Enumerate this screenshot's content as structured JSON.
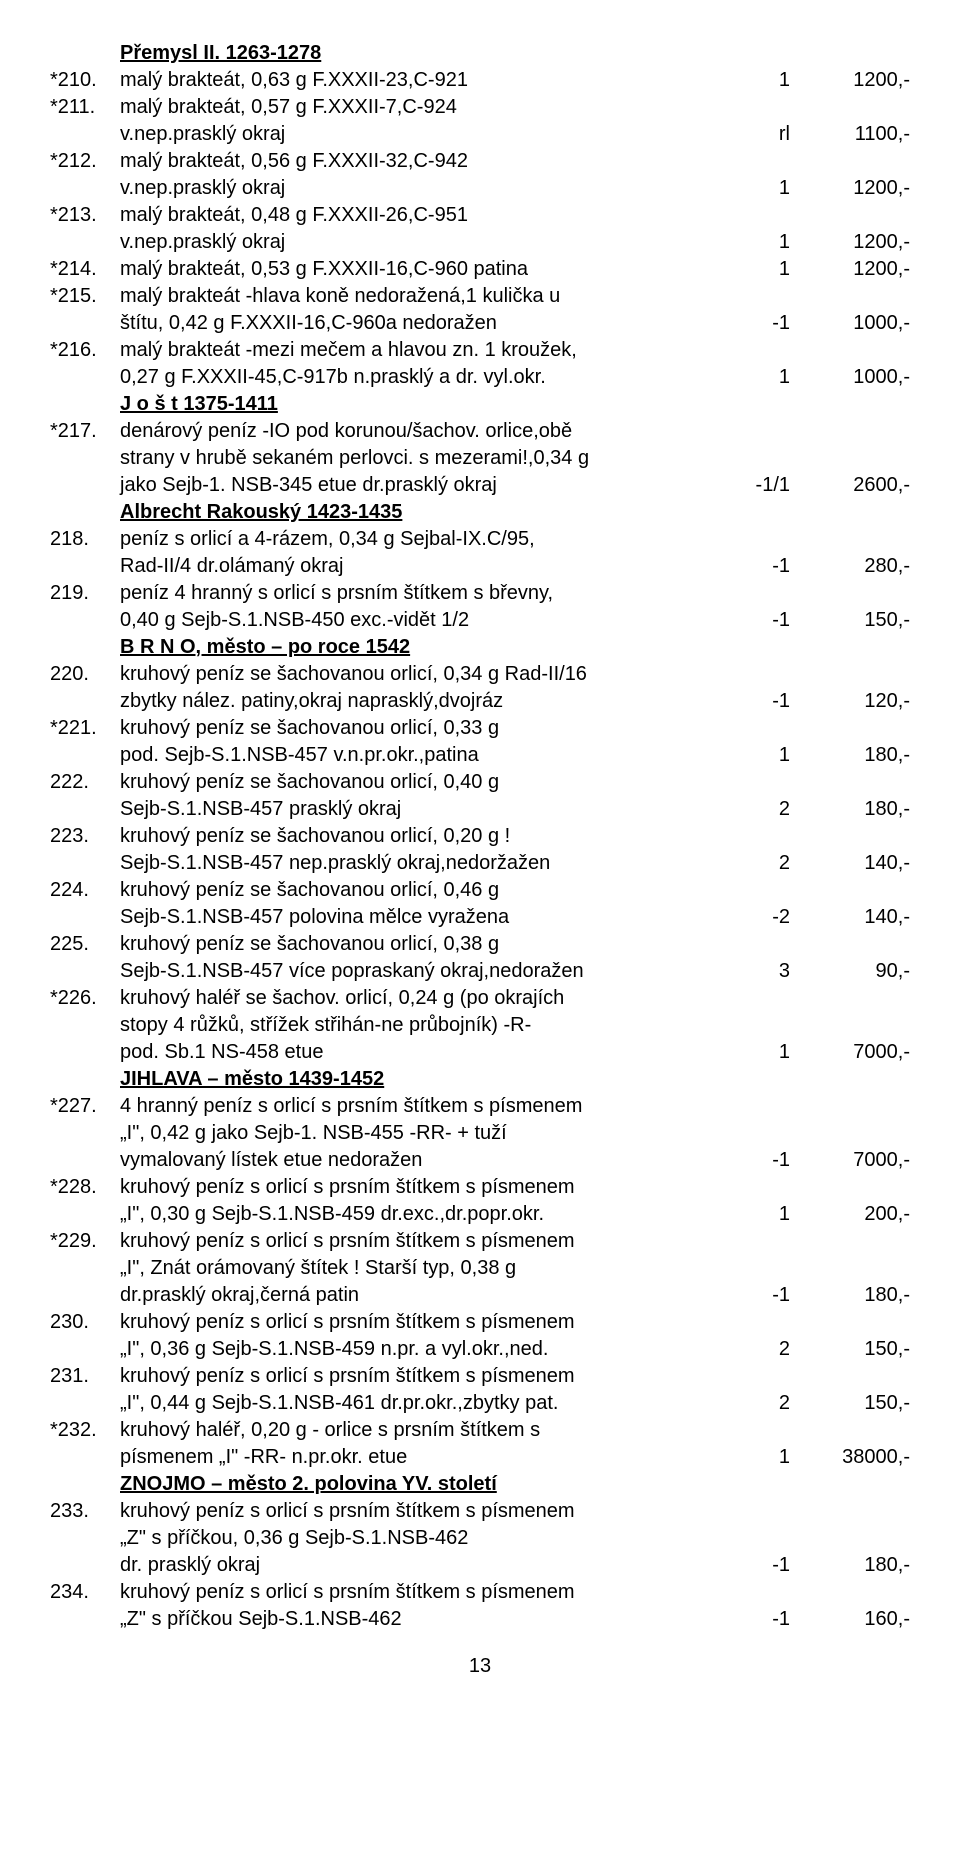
{
  "sections": [
    {
      "type": "heading",
      "text": "Přemysl II.  1263-1278"
    },
    {
      "type": "row",
      "lot": "*210.",
      "desc": "malý brakteát, 0,63 g   F.XXXII-23,C-921",
      "qty": "1",
      "price": "1200,-"
    },
    {
      "type": "row",
      "lot": "*211.",
      "desc": "malý brakteát, 0,57 g   F.XXXII-7,C-924",
      "qty": "",
      "price": ""
    },
    {
      "type": "row",
      "lot": "",
      "desc": "v.nep.prasklý okraj",
      "qty": "rl",
      "price": "1100,-"
    },
    {
      "type": "row",
      "lot": "*212.",
      "desc": "malý brakteát, 0,56 g   F.XXXII-32,C-942",
      "qty": "",
      "price": ""
    },
    {
      "type": "row",
      "lot": "",
      "desc": "v.nep.prasklý okraj",
      "qty": "1",
      "price": "1200,-"
    },
    {
      "type": "row",
      "lot": "*213.",
      "desc": "malý brakteát, 0,48 g   F.XXXII-26,C-951",
      "qty": "",
      "price": ""
    },
    {
      "type": "row",
      "lot": "",
      "desc": "v.nep.prasklý okraj",
      "qty": "1",
      "price": "1200,-"
    },
    {
      "type": "row",
      "lot": "*214.",
      "desc": "malý brakteát, 0,53 g   F.XXXII-16,C-960   patina",
      "qty": "1",
      "price": "1200,-"
    },
    {
      "type": "row",
      "lot": "*215.",
      "desc": "malý brakteát -hlava koně nedoražená,1 kulička u",
      "qty": "",
      "price": ""
    },
    {
      "type": "row",
      "lot": "",
      "desc": "štítu, 0,42 g   F.XXXII-16,C-960a   nedoražen",
      "qty": "-1",
      "price": "1000,-"
    },
    {
      "type": "row",
      "lot": "*216.",
      "desc": "malý brakteát -mezi mečem a hlavou zn. 1 kroužek,",
      "qty": "",
      "price": ""
    },
    {
      "type": "row",
      "lot": "",
      "desc": "0,27 g   F.XXXII-45,C-917b   n.prasklý a dr. vyl.okr.",
      "qty": "1",
      "price": "1000,-"
    },
    {
      "type": "heading",
      "text": "J o š t  1375-1411"
    },
    {
      "type": "row",
      "lot": "*217.",
      "desc": "denárový peníz -IO pod korunou/šachov. orlice,obě",
      "qty": "",
      "price": ""
    },
    {
      "type": "row",
      "lot": "",
      "desc": "strany v hrubě sekaném perlovci. s mezerami!,0,34 g",
      "qty": "",
      "price": ""
    },
    {
      "type": "row",
      "lot": "",
      "desc": "jako Sejb-1. NSB-345   etue   dr.prasklý okraj",
      "qty": "-1/1",
      "price": "2600,-"
    },
    {
      "type": "heading",
      "text": "Albrecht Rakouský  1423-1435"
    },
    {
      "type": "row",
      "lot": "218.",
      "desc": "peníz s orlicí a 4-rázem, 0,34 g   Sejbal-IX.C/95,",
      "qty": "",
      "price": ""
    },
    {
      "type": "row",
      "lot": "",
      "desc": "Rad-II/4   dr.olámaný okraj",
      "qty": "-1",
      "price": "280,-"
    },
    {
      "type": "row",
      "lot": "219.",
      "desc": "peníz 4 hranný s orlicí s prsním štítkem s břevny,",
      "qty": "",
      "price": ""
    },
    {
      "type": "row",
      "lot": "",
      "desc": "0,40 g   Sejb-S.1.NSB-450   exc.-vidět 1/2",
      "qty": "-1",
      "price": "150,-"
    },
    {
      "type": "heading",
      "text": "B R N O, město – po roce 1542"
    },
    {
      "type": "row",
      "lot": "220.",
      "desc": "kruhový peníz se šachovanou orlicí, 0,34 g  Rad-II/16",
      "qty": "",
      "price": ""
    },
    {
      "type": "row",
      "lot": "",
      "desc": "zbytky nález. patiny,okraj naprasklý,dvojráz",
      "qty": "-1",
      "price": "120,-"
    },
    {
      "type": "row",
      "lot": "*221.",
      "desc": "kruhový peníz se šachovanou orlicí, 0,33 g",
      "qty": "",
      "price": ""
    },
    {
      "type": "row",
      "lot": "",
      "desc": "pod. Sejb-S.1.NSB-457   v.n.pr.okr.,patina",
      "qty": "1",
      "price": "180,-"
    },
    {
      "type": "row",
      "lot": "222.",
      "desc": "kruhový peníz se šachovanou orlicí, 0,40 g",
      "qty": "",
      "price": ""
    },
    {
      "type": "row",
      "lot": "",
      "desc": "Sejb-S.1.NSB-457   prasklý okraj",
      "qty": "2",
      "price": "180,-"
    },
    {
      "type": "row",
      "lot": "223.",
      "desc": "kruhový peníz se šachovanou orlicí, 0,20 g !",
      "qty": "",
      "price": ""
    },
    {
      "type": "row",
      "lot": "",
      "desc": "Sejb-S.1.NSB-457   nep.prasklý okraj,nedoržažen",
      "qty": "2",
      "price": "140,-"
    },
    {
      "type": "row",
      "lot": "224.",
      "desc": "kruhový peníz se šachovanou orlicí, 0,46 g",
      "qty": "",
      "price": ""
    },
    {
      "type": "row",
      "lot": "",
      "desc": "Sejb-S.1.NSB-457   polovina mělce vyražena",
      "qty": "-2",
      "price": "140,-"
    },
    {
      "type": "row",
      "lot": "225.",
      "desc": "kruhový peníz se šachovanou orlicí, 0,38 g",
      "qty": "",
      "price": ""
    },
    {
      "type": "row",
      "lot": "",
      "desc": "Sejb-S.1.NSB-457   více popraskaný okraj,nedoražen",
      "qty": "3",
      "price": "90,-"
    },
    {
      "type": "row",
      "lot": "*226.",
      "desc": "kruhový haléř se šachov. orlicí, 0,24 g (po okrajích",
      "qty": "",
      "price": ""
    },
    {
      "type": "row",
      "lot": "",
      "desc": "stopy 4 růžků, střížek střihán-ne průbojník)    -R-",
      "qty": "",
      "price": ""
    },
    {
      "type": "row",
      "lot": "",
      "desc": "pod. Sb.1 NS-458    etue",
      "qty": "1",
      "price": "7000,-"
    },
    {
      "type": "heading",
      "text": "JIHLAVA – město  1439-1452"
    },
    {
      "type": "row",
      "lot": "*227.",
      "desc": "4 hranný peníz s orlicí s prsním štítkem s písmenem",
      "qty": "",
      "price": ""
    },
    {
      "type": "row",
      "lot": "",
      "desc": "„I\", 0,42 g   jako Sejb-1. NSB-455   -RR-   + tuží",
      "qty": "",
      "price": ""
    },
    {
      "type": "row",
      "lot": "",
      "desc": "vymalovaný lístek   etue   nedoražen",
      "qty": "-1",
      "price": "7000,-"
    },
    {
      "type": "row",
      "lot": "*228.",
      "desc": "kruhový peníz s orlicí s prsním štítkem s písmenem",
      "qty": "",
      "price": ""
    },
    {
      "type": "row",
      "lot": "",
      "desc": "„I\", 0,30 g   Sejb-S.1.NSB-459   dr.exc.,dr.popr.okr.",
      "qty": "1",
      "price": "200,-"
    },
    {
      "type": "row",
      "lot": "*229.",
      "desc": "kruhový peníz s orlicí s prsním štítkem s písmenem",
      "qty": "",
      "price": ""
    },
    {
      "type": "row",
      "lot": "",
      "desc": "„I\", Znát orámovaný štítek ! Starší typ, 0,38 g",
      "qty": "",
      "price": ""
    },
    {
      "type": "row",
      "lot": "",
      "desc": "dr.prasklý okraj,černá patin",
      "qty": "-1",
      "price": "180,-"
    },
    {
      "type": "row",
      "lot": "230.",
      "desc": "kruhový peníz s orlicí s prsním štítkem s písmenem",
      "qty": "",
      "price": ""
    },
    {
      "type": "row",
      "lot": "",
      "desc": "„I\", 0,36 g   Sejb-S.1.NSB-459  n.pr. a vyl.okr.,ned.",
      "qty": "2",
      "price": "150,-"
    },
    {
      "type": "row",
      "lot": "231.",
      "desc": "kruhový peníz s orlicí s prsním štítkem s písmenem",
      "qty": "",
      "price": ""
    },
    {
      "type": "row",
      "lot": "",
      "desc": "„I\", 0,44 g   Sejb-S.1.NSB-461  dr.pr.okr.,zbytky pat.",
      "qty": "2",
      "price": "150,-"
    },
    {
      "type": "row",
      "lot": "*232.",
      "desc": "kruhový haléř, 0,20 g  - orlice s prsním štítkem s",
      "qty": "",
      "price": ""
    },
    {
      "type": "row",
      "lot": "",
      "desc": "písmenem  „I\"   -RR-   n.pr.okr.       etue",
      "qty": "1",
      "price": "38000,-"
    },
    {
      "type": "heading",
      "text": "ZNOJMO – město  2. polovina YV. století"
    },
    {
      "type": "row",
      "lot": "233.",
      "desc": "kruhový peníz s orlicí s prsním štítkem s písmenem",
      "qty": "",
      "price": ""
    },
    {
      "type": "row",
      "lot": "",
      "desc": "„Z\" s příčkou, 0,36 g       Sejb-S.1.NSB-462",
      "qty": "",
      "price": ""
    },
    {
      "type": "row",
      "lot": "",
      "desc": "dr. prasklý okraj",
      "qty": "-1",
      "price": "180,-"
    },
    {
      "type": "row",
      "lot": "234.",
      "desc": "kruhový peníz s orlicí s prsním štítkem s písmenem",
      "qty": "",
      "price": ""
    },
    {
      "type": "row",
      "lot": "",
      "desc": "„Z\" s příčkou   Sejb-S.1.NSB-462",
      "qty": "-1",
      "price": "160,-"
    }
  ],
  "page_number": "13"
}
